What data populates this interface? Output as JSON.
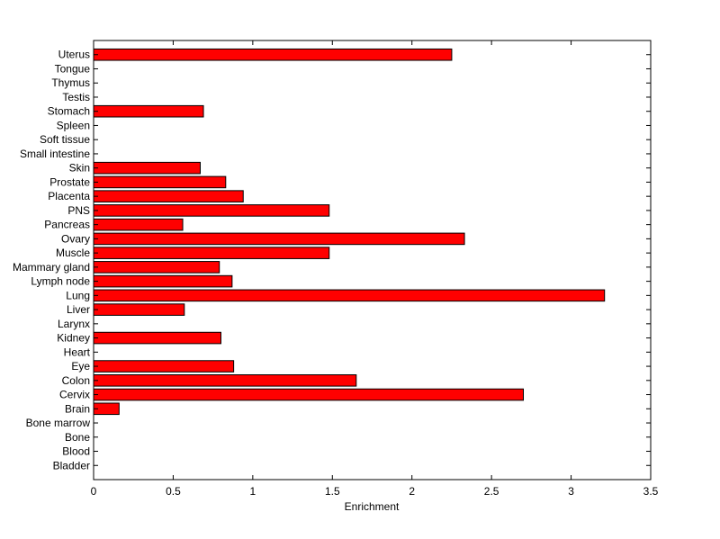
{
  "chart_data": {
    "type": "bar",
    "orientation": "horizontal",
    "xlabel": "Enrichment",
    "ylabel": "",
    "xlim": [
      0,
      3.5
    ],
    "xticks": [
      "0",
      "0.5",
      "1",
      "1.5",
      "2",
      "2.5",
      "3",
      "3.5"
    ],
    "grid": false,
    "bar_color": "#ff0000",
    "categories": [
      "Bladder",
      "Blood",
      "Bone",
      "Bone marrow",
      "Brain",
      "Cervix",
      "Colon",
      "Eye",
      "Heart",
      "Kidney",
      "Larynx",
      "Liver",
      "Lung",
      "Lymph node",
      "Mammary gland",
      "Muscle",
      "Ovary",
      "Pancreas",
      "PNS",
      "Placenta",
      "Prostate",
      "Skin",
      "Small intestine",
      "Soft tissue",
      "Spleen",
      "Stomach",
      "Testis",
      "Thymus",
      "Tongue",
      "Uterus"
    ],
    "values": [
      0,
      0,
      0,
      0,
      0.16,
      2.7,
      1.65,
      0.88,
      0,
      0.8,
      0,
      0.57,
      3.21,
      0.87,
      0.79,
      1.48,
      2.33,
      0.56,
      1.48,
      0.94,
      0.83,
      0.67,
      0,
      0,
      0,
      0.69,
      0,
      0,
      0,
      2.25
    ]
  }
}
